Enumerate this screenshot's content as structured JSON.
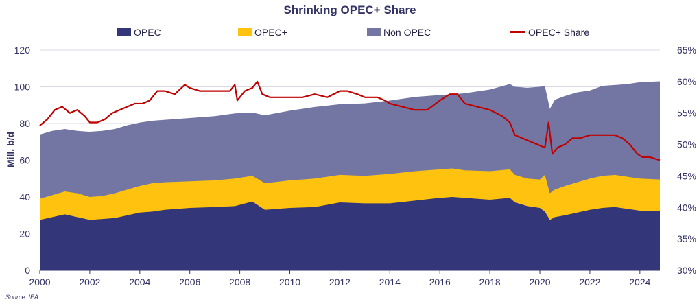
{
  "chart_data": {
    "type": "area",
    "title": "Shrinking OPEC+ Share",
    "ylabel": "Mill. b/d",
    "y2label": "",
    "source": "Source: IEA",
    "xlim": [
      2000,
      2024.8
    ],
    "ylim": [
      0,
      120
    ],
    "y2lim": [
      30,
      65
    ],
    "x_ticks": [
      "2000",
      "2002",
      "2004",
      "2006",
      "2008",
      "2010",
      "2012",
      "2014",
      "2016",
      "2018",
      "2020",
      "2022",
      "2024"
    ],
    "y_ticks": [
      "0",
      "20",
      "40",
      "60",
      "80",
      "100",
      "120"
    ],
    "y2_ticks": [
      "30%",
      "35%",
      "40%",
      "45%",
      "50%",
      "55%",
      "60%",
      "65%"
    ],
    "legend": {
      "placement": "top",
      "items": [
        {
          "label": "OPEC",
          "kind": "box",
          "color": "#333779"
        },
        {
          "label": "OPEC+",
          "kind": "box",
          "color": "#FFC20E"
        },
        {
          "label": "Non OPEC",
          "kind": "box",
          "color": "#7376A2"
        },
        {
          "label": "OPEC+ Share",
          "kind": "line",
          "color": "#C00000"
        }
      ]
    },
    "colors": {
      "opec": "#333779",
      "opec_plus": "#FFC20E",
      "non_opec": "#7376A2",
      "share": "#C00000",
      "grid": "#D9D9E6",
      "text": "#333366"
    },
    "series": [
      {
        "name": "OPEC",
        "axis": "left",
        "x": [
          2000,
          2000.5,
          2001,
          2001.5,
          2002,
          2002.5,
          2003,
          2003.5,
          2004,
          2004.5,
          2005,
          2006,
          2007,
          2007.8,
          2008.5,
          2009,
          2010,
          2011,
          2012,
          2013,
          2014,
          2015,
          2016,
          2016.5,
          2017,
          2018,
          2018.8,
          2019,
          2019.5,
          2020,
          2020.2,
          2020.4,
          2020.6,
          2021,
          2021.5,
          2022,
          2022.5,
          2023,
          2023.5,
          2024,
          2024.8
        ],
        "values": [
          27.5,
          29,
          30.5,
          29,
          27.5,
          28,
          28.5,
          30,
          31.5,
          32,
          33,
          34,
          34.5,
          35,
          37.5,
          33,
          34,
          34.5,
          37,
          36.5,
          36.5,
          38,
          39.5,
          40,
          39.5,
          38.5,
          39.5,
          37,
          35,
          34,
          32,
          27.5,
          29,
          30,
          31.5,
          33,
          34,
          34.5,
          33.5,
          32.5,
          32.5
        ]
      },
      {
        "name": "OPEC+",
        "axis": "left",
        "x": [
          2000,
          2000.5,
          2001,
          2001.5,
          2002,
          2002.5,
          2003,
          2003.5,
          2004,
          2004.5,
          2005,
          2006,
          2007,
          2007.8,
          2008.5,
          2009,
          2010,
          2011,
          2012,
          2013,
          2014,
          2015,
          2016,
          2016.5,
          2017,
          2018,
          2018.8,
          2019,
          2019.5,
          2020,
          2020.2,
          2020.4,
          2020.6,
          2021,
          2021.5,
          2022,
          2022.5,
          2023,
          2023.5,
          2024,
          2024.8
        ],
        "values": [
          39,
          41,
          43,
          42,
          40,
          40.5,
          42,
          44,
          46,
          47.5,
          48,
          48.5,
          49,
          50,
          51.5,
          47.5,
          49,
          50,
          52,
          51.5,
          52.5,
          54,
          55,
          55.5,
          54.5,
          54,
          55,
          52,
          50,
          49.5,
          52,
          42,
          44,
          46,
          48,
          50,
          51.5,
          52,
          51,
          50,
          49.5
        ]
      },
      {
        "name": "Non OPEC",
        "axis": "left",
        "x": [
          2000,
          2000.5,
          2001,
          2001.5,
          2002,
          2002.5,
          2003,
          2003.5,
          2004,
          2004.5,
          2005,
          2006,
          2007,
          2007.8,
          2008.5,
          2009,
          2010,
          2011,
          2012,
          2013,
          2014,
          2015,
          2016,
          2016.5,
          2017,
          2018,
          2018.8,
          2019,
          2019.5,
          2020,
          2020.2,
          2020.4,
          2020.6,
          2021,
          2021.5,
          2022,
          2022.5,
          2023,
          2023.5,
          2024,
          2024.8
        ],
        "values": [
          74,
          76,
          77,
          76,
          75.5,
          76,
          77,
          79,
          80.5,
          81.5,
          82,
          83,
          84,
          85.5,
          86,
          84.5,
          87,
          89,
          90.5,
          91,
          92.5,
          94.5,
          95.5,
          96,
          96.5,
          98.5,
          101.5,
          100,
          99.5,
          100,
          100.5,
          88,
          93,
          95,
          97,
          98,
          100.5,
          101,
          101.5,
          102.5,
          103
        ]
      },
      {
        "name": "OPEC+ Share",
        "axis": "right",
        "x": [
          2000,
          2000.3,
          2000.6,
          2000.9,
          2001.2,
          2001.5,
          2001.8,
          2002,
          2002.3,
          2002.6,
          2002.9,
          2003.2,
          2003.5,
          2003.8,
          2004.1,
          2004.4,
          2004.7,
          2005,
          2005.4,
          2005.8,
          2006,
          2006.4,
          2006.8,
          2007.2,
          2007.6,
          2007.8,
          2007.9,
          2008.2,
          2008.5,
          2008.7,
          2008.9,
          2009.2,
          2009.5,
          2010,
          2010.5,
          2011,
          2011.5,
          2012,
          2012.3,
          2012.7,
          2013,
          2013.5,
          2013.8,
          2014,
          2014.5,
          2015,
          2015.5,
          2016,
          2016.4,
          2016.7,
          2017,
          2017.5,
          2018,
          2018.5,
          2018.8,
          2019,
          2019.3,
          2019.6,
          2019.9,
          2020.2,
          2020.35,
          2020.5,
          2020.7,
          2021,
          2021.3,
          2021.6,
          2022,
          2022.3,
          2022.6,
          2023,
          2023.3,
          2023.6,
          2023.9,
          2024.1,
          2024.4,
          2024.8
        ],
        "values": [
          53,
          54,
          55.5,
          56,
          55,
          55.5,
          54.5,
          53.5,
          53.5,
          54,
          55,
          55.5,
          56,
          56.5,
          56.5,
          57,
          58.5,
          58.5,
          58,
          59.5,
          59,
          58.5,
          58.5,
          58.5,
          58.5,
          59.5,
          57,
          58.5,
          59,
          60,
          58,
          57.5,
          57.5,
          57.5,
          57.5,
          58,
          57.5,
          58.5,
          58.5,
          58,
          57.5,
          57.5,
          57,
          56.5,
          56,
          55.5,
          55.5,
          57,
          58,
          58,
          56.5,
          56,
          55.5,
          54.5,
          53.5,
          51.5,
          51,
          50.5,
          50,
          49.5,
          53.5,
          48.5,
          49.5,
          50,
          51,
          51,
          51.5,
          51.5,
          51.5,
          51.5,
          51,
          50,
          48.5,
          48,
          48,
          47.5
        ]
      }
    ]
  }
}
